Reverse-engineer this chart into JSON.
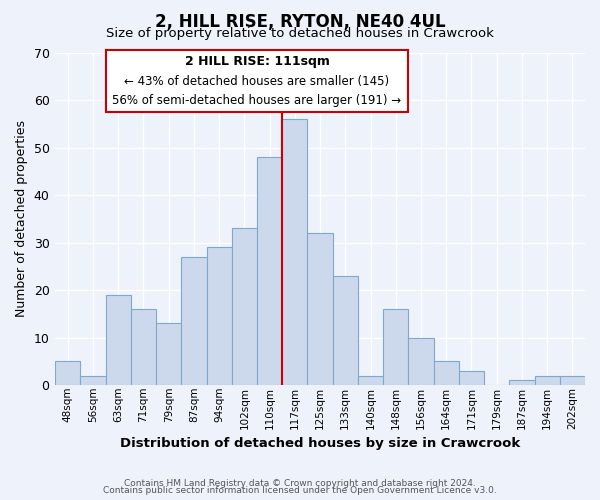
{
  "title": "2, HILL RISE, RYTON, NE40 4UL",
  "subtitle": "Size of property relative to detached houses in Crawcrook",
  "xlabel": "Distribution of detached houses by size in Crawcrook",
  "ylabel": "Number of detached properties",
  "bar_labels": [
    "48sqm",
    "56sqm",
    "63sqm",
    "71sqm",
    "79sqm",
    "87sqm",
    "94sqm",
    "102sqm",
    "110sqm",
    "117sqm",
    "125sqm",
    "133sqm",
    "140sqm",
    "148sqm",
    "156sqm",
    "164sqm",
    "171sqm",
    "179sqm",
    "187sqm",
    "194sqm",
    "202sqm"
  ],
  "bar_values": [
    5,
    2,
    19,
    16,
    13,
    27,
    29,
    33,
    48,
    56,
    32,
    23,
    2,
    16,
    10,
    5,
    3,
    0,
    1,
    2,
    2
  ],
  "bar_color": "#ccd9ed",
  "bar_edge_color": "#7fa8cc",
  "highlight_bar_index": 8,
  "highlight_line_color": "#cc0000",
  "ylim": [
    0,
    70
  ],
  "yticks": [
    0,
    10,
    20,
    30,
    40,
    50,
    60,
    70
  ],
  "annotation_title": "2 HILL RISE: 111sqm",
  "annotation_line1": "← 43% of detached houses are smaller (145)",
  "annotation_line2": "56% of semi-detached houses are larger (191) →",
  "annotation_box_color": "#cc0000",
  "footnote1": "Contains HM Land Registry data © Crown copyright and database right 2024.",
  "footnote2": "Contains public sector information licensed under the Open Government Licence v3.0.",
  "bg_color": "#eef2fa",
  "plot_bg_color": "#eef2fa",
  "grid_color": "#ffffff"
}
